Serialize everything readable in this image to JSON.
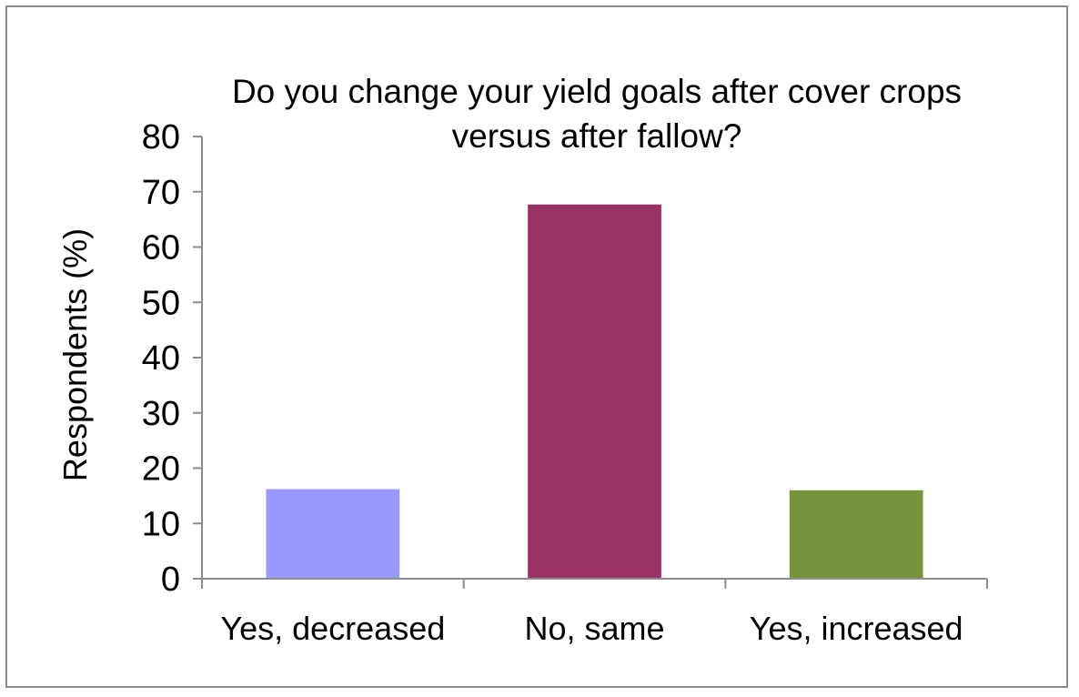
{
  "chart_data": {
    "type": "bar",
    "title_lines": [
      "Do you change your yield goals after cover crops",
      "versus after fallow?"
    ],
    "xlabel": "",
    "ylabel": "Respondents (%)",
    "categories": [
      "Yes, decreased",
      "No, same",
      "Yes, increased"
    ],
    "values": [
      16.2,
      67.7,
      16.0
    ],
    "bar_colors": [
      "#9999ff",
      "#993366",
      "#77933c"
    ],
    "ylim": [
      0,
      80
    ],
    "yticks": [
      "0",
      "10",
      "20",
      "30",
      "40",
      "50",
      "60",
      "70",
      "80"
    ],
    "grid": false,
    "legend": "none"
  }
}
